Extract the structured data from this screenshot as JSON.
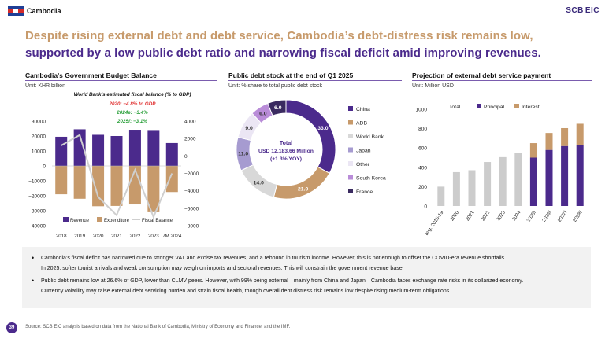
{
  "header": {
    "country": "Cambodia",
    "logo_main": "SCB",
    "logo_sub": "EIC"
  },
  "headline": {
    "line1": "Despite rising external debt and debt service, Cambodia’s debt-distress risk remains low,",
    "line2": "supported by a low public debt ratio and narrowing fiscal deficit amid improving revenues."
  },
  "panel1": {
    "title": "Cambodia's Government Budget Balance",
    "unit": "Unit: KHR billion"
  },
  "panel2": {
    "title": "Public debt stock at the end of Q1 2025",
    "unit": "Unit: % share to total public debt stock"
  },
  "panel3": {
    "title": "Projection of external debt service payment",
    "unit": "Unit: Million USD"
  },
  "chart_data": [
    {
      "type": "bar",
      "categories": [
        "2018",
        "2019",
        "2020",
        "2021",
        "2022",
        "2023",
        "7M 2024"
      ],
      "series": [
        {
          "name": "Revenue",
          "values": [
            19500,
            24500,
            20800,
            20000,
            24200,
            24000,
            15300
          ],
          "color": "#4b2a8c"
        },
        {
          "name": "Expenditure",
          "values": [
            -19000,
            -22000,
            -27000,
            -26800,
            -25800,
            -31000,
            -17500
          ],
          "color": "#c79a6b"
        },
        {
          "name": "Fiscal Balance",
          "values": [
            1200,
            2400,
            -4700,
            -6800,
            -1600,
            -7000,
            -2000
          ],
          "color": "#cfcfcf",
          "axis": "right"
        }
      ],
      "ylim_left": [
        -40000,
        30000
      ],
      "yticks_left": [
        "30000",
        "20000",
        "10000",
        "0",
        "−10000",
        "−20000",
        "−30000",
        "−40000"
      ],
      "ylim_right": [
        -8000,
        4000
      ],
      "yticks_right": [
        "4000",
        "2000",
        "0",
        "−2000",
        "−4000",
        "−6000",
        "−8000"
      ],
      "annotation": {
        "title": "World Bank’s estimated fiscal balance (% to GDP)",
        "lines": [
          {
            "text": "2020: −4.8% to GDP",
            "color": "#e03030"
          },
          {
            "text": "2024e: −3.4%",
            "color": "#2aa03a"
          },
          {
            "text": "2025f: −3.1%",
            "color": "#2aa03a"
          }
        ]
      },
      "legend": "bottom"
    },
    {
      "type": "pie",
      "style": "donut",
      "labels": [
        "China",
        "ADB",
        "World Bank",
        "Japan",
        "Other",
        "South Korea",
        "France"
      ],
      "values": [
        33.0,
        21.0,
        14.0,
        11.0,
        9.0,
        6.0,
        6.0
      ],
      "value_labels": [
        "33.0",
        "21.0",
        "14.0",
        "11.0",
        "9.0",
        "6.0",
        "6.0"
      ],
      "colors": [
        "#4b2a8c",
        "#c79a6b",
        "#d8d8d8",
        "#a69bd0",
        "#ebe6f4",
        "#b98cd8",
        "#3a2a60"
      ],
      "center_text": [
        "Total",
        "USD 12,183.66 Million",
        "(+1.3% YOY)"
      ],
      "legend": "right"
    },
    {
      "type": "bar",
      "categories": [
        "avg. 2015-19",
        "2020",
        "2021",
        "2022",
        "2023",
        "2024",
        "2025f",
        "2026f",
        "2027f",
        "2028f"
      ],
      "series": [
        {
          "name": "Total",
          "values": [
            200,
            350,
            370,
            455,
            505,
            545,
            null,
            null,
            null,
            null
          ],
          "color": "#cccccc"
        },
        {
          "name": "Principal",
          "values": [
            null,
            null,
            null,
            null,
            null,
            null,
            500,
            580,
            620,
            630
          ],
          "color": "#4b2a8c"
        },
        {
          "name": "Interest",
          "values": [
            null,
            null,
            null,
            null,
            null,
            null,
            150,
            175,
            185,
            220
          ],
          "color": "#c79a6b"
        }
      ],
      "ylim": [
        0,
        1000
      ],
      "yticks": [
        "0",
        "200",
        "400",
        "600",
        "800",
        "1000"
      ],
      "legend": "top"
    }
  ],
  "notes": {
    "b1_l1": "Cambodia’s fiscal deficit has narrowed due to stronger VAT and excise tax revenues, and a rebound in tourism income. However, this is not enough to offset the COVID-era revenue shortfalls.",
    "b1_l2": "In 2025, softer tourist arrivals and weak consumption may weigh on imports and sectoral revenues. This will constrain the government revenue base.",
    "b2_l1": "Public debt remains low at 26.6% of GDP, lower than CLMV peers. However, with 99% being external—mainly from China and Japan—Cambodia faces exchange rate risks in its dollarized economy.",
    "b2_l2": "Currency volatility may raise external debt servicing burden and strain fiscal health, though overall debt distress risk remains low despite rising medium-term obligations."
  },
  "footer": {
    "page": "39",
    "source": "Source: SCB EIC analysis based on data from the National Bank of Cambodia, Ministry of Economy and Finance, and the IMF."
  }
}
